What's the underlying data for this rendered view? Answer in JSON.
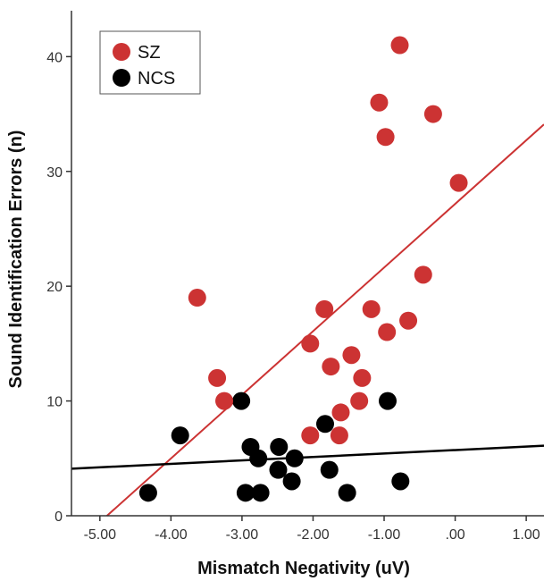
{
  "chart_data": {
    "type": "scatter",
    "title": "",
    "xlabel": "Mismatch Negativity (uV)",
    "ylabel": "Sound Identification Errors (n)",
    "xlim": [
      -5.4,
      1.25
    ],
    "ylim": [
      0,
      44
    ],
    "grid": false,
    "legend_position": "top-left",
    "x_ticks": [
      {
        "value": -5,
        "label": "-5.00"
      },
      {
        "value": -4,
        "label": "-4.00"
      },
      {
        "value": -3,
        "label": "-3.00"
      },
      {
        "value": -2,
        "label": "-2.00"
      },
      {
        "value": -1,
        "label": "-1.00"
      },
      {
        "value": 0,
        "label": ".00"
      },
      {
        "value": 1,
        "label": "1.00"
      }
    ],
    "y_ticks": [
      {
        "value": 0,
        "label": "0"
      },
      {
        "value": 10,
        "label": "10"
      },
      {
        "value": 20,
        "label": "20"
      },
      {
        "value": 30,
        "label": "30"
      },
      {
        "value": 40,
        "label": "40"
      }
    ],
    "series": [
      {
        "name": "SZ",
        "color": "#cc3333",
        "points": [
          {
            "x": -0.78,
            "y": 41
          },
          {
            "x": -1.07,
            "y": 36
          },
          {
            "x": -0.31,
            "y": 35
          },
          {
            "x": -0.98,
            "y": 33
          },
          {
            "x": 0.05,
            "y": 29
          },
          {
            "x": -3.63,
            "y": 19
          },
          {
            "x": -0.45,
            "y": 21
          },
          {
            "x": -1.84,
            "y": 18
          },
          {
            "x": -1.18,
            "y": 18
          },
          {
            "x": -0.66,
            "y": 17
          },
          {
            "x": -0.96,
            "y": 16
          },
          {
            "x": -2.04,
            "y": 15
          },
          {
            "x": -1.46,
            "y": 14
          },
          {
            "x": -1.75,
            "y": 13
          },
          {
            "x": -3.35,
            "y": 12
          },
          {
            "x": -1.31,
            "y": 12
          },
          {
            "x": -3.25,
            "y": 10
          },
          {
            "x": -1.35,
            "y": 10
          },
          {
            "x": -1.61,
            "y": 9
          },
          {
            "x": -2.04,
            "y": 7
          },
          {
            "x": -1.63,
            "y": 7
          }
        ],
        "fit_line": {
          "x": [
            -4.9,
            1.25
          ],
          "y": [
            0,
            34.1
          ]
        }
      },
      {
        "name": "NCS",
        "color": "#000000",
        "points": [
          {
            "x": -3.01,
            "y": 10
          },
          {
            "x": -0.95,
            "y": 10
          },
          {
            "x": -1.83,
            "y": 8
          },
          {
            "x": -3.87,
            "y": 7
          },
          {
            "x": -2.88,
            "y": 6
          },
          {
            "x": -2.48,
            "y": 6
          },
          {
            "x": -2.77,
            "y": 5
          },
          {
            "x": -2.26,
            "y": 5
          },
          {
            "x": -2.49,
            "y": 4
          },
          {
            "x": -1.77,
            "y": 4
          },
          {
            "x": -2.3,
            "y": 3
          },
          {
            "x": -0.77,
            "y": 3
          },
          {
            "x": -4.32,
            "y": 2
          },
          {
            "x": -2.95,
            "y": 2
          },
          {
            "x": -2.74,
            "y": 2
          },
          {
            "x": -1.52,
            "y": 2
          }
        ],
        "fit_line": {
          "x": [
            -5.4,
            1.25
          ],
          "y": [
            4.1,
            6.1
          ]
        }
      }
    ]
  }
}
